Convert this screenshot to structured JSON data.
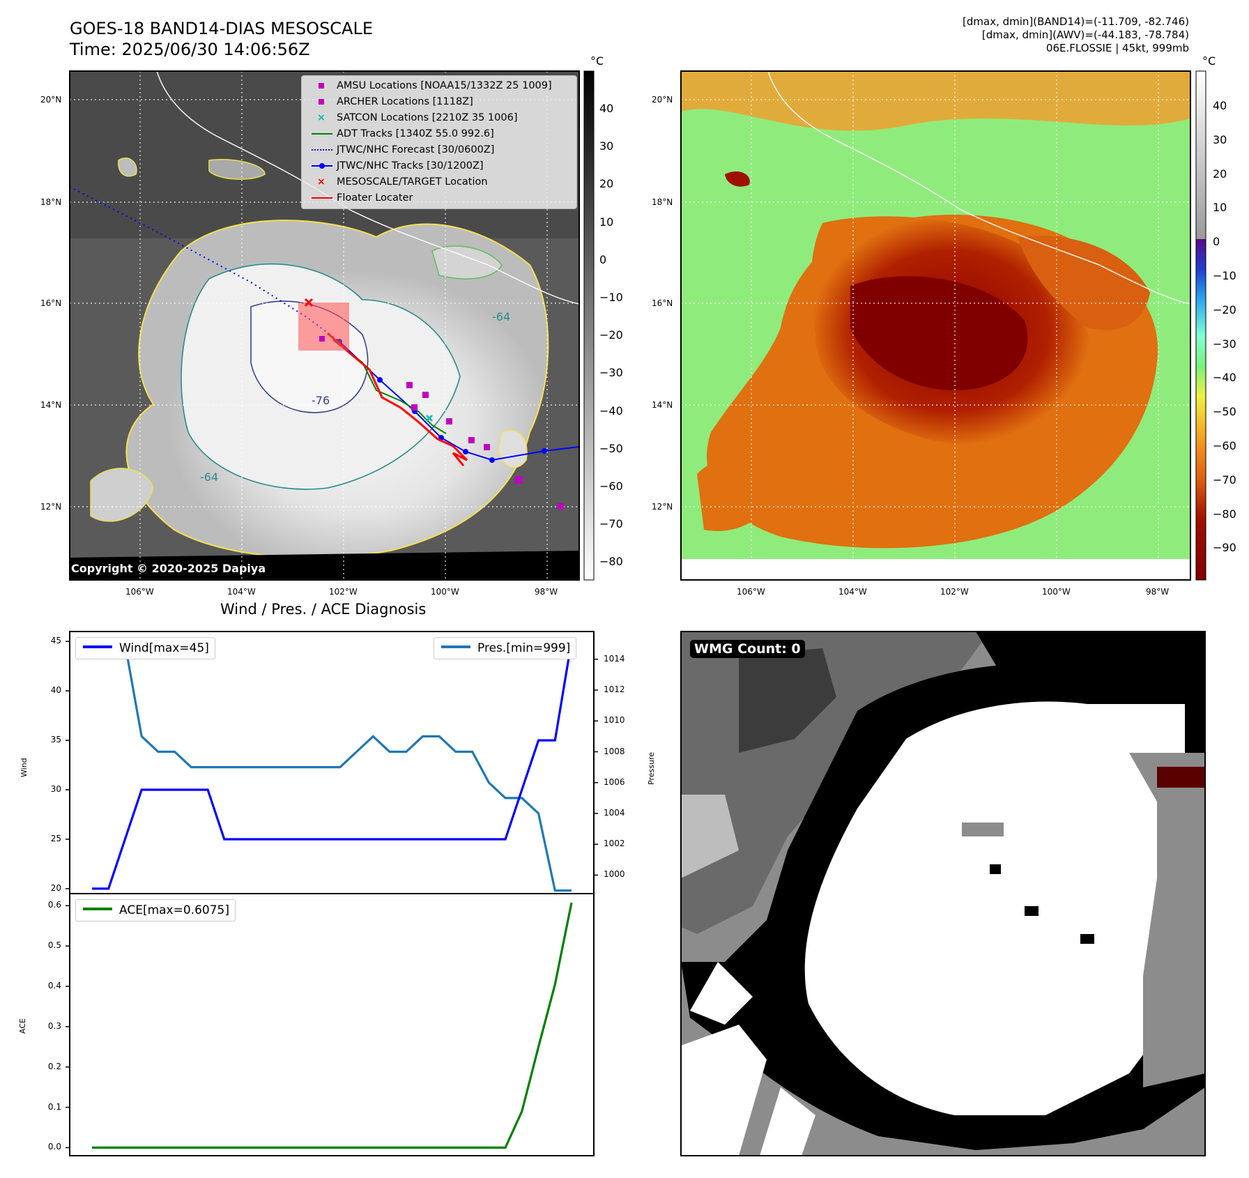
{
  "header": {
    "title_line1": "GOES-18 BAND14-DIAS MESOSCALE",
    "title_line2": "Time: 2025/06/30 14:06:56Z",
    "right_line1": "[dmax, dmin](BAND14)=(-11.709, -82.746)",
    "right_line2": "[dmax, dmin](AWV)=(-44.183, -78.784)",
    "right_line3": "06E.FLOSSIE | 45kt, 999mb"
  },
  "map": {
    "lat_labels": [
      "20°N",
      "18°N",
      "16°N",
      "14°N",
      "12°N"
    ],
    "lon_labels": [
      "106°W",
      "104°W",
      "102°W",
      "100°W",
      "98°W"
    ],
    "copyright": "Copyright © 2020-2025 Dapiya",
    "contour_labels": [
      "-76",
      "-64",
      "-64"
    ],
    "legend": [
      {
        "label": "AMSU Locations [NOAA15/1332Z 25 1009]",
        "icon": "square-marker",
        "color": "#c000c0"
      },
      {
        "label": "ARCHER Locations [1118Z]",
        "icon": "square-marker",
        "color": "#c000c0"
      },
      {
        "label": "SATCON Locations [2210Z 35 1006]",
        "icon": "x-marker",
        "color": "#00b8b8"
      },
      {
        "label": "ADT Tracks [1340Z 55.0 992.6]",
        "icon": "line",
        "color": "#008000"
      },
      {
        "label": "JTWC/NHC Forecast [30/0600Z]",
        "icon": "dotted-line",
        "color": "#0000ff"
      },
      {
        "label": "JTWC/NHC Tracks [30/1200Z]",
        "icon": "line-dot",
        "color": "#0000ff"
      },
      {
        "label": "MESOSCALE/TARGET Location",
        "icon": "x-marker",
        "color": "#ff0000"
      },
      {
        "label": "Floater Locater",
        "icon": "line",
        "color": "#ff0000"
      }
    ],
    "colorbar_unit": "°C",
    "colorbar_ticks": [
      "40",
      "30",
      "20",
      "10",
      "0",
      "−10",
      "−20",
      "−30",
      "−40",
      "−50",
      "−60",
      "−70",
      "−80"
    ]
  },
  "awv_map": {
    "colorbar_unit": "°C",
    "colorbar_ticks": [
      "40",
      "30",
      "20",
      "10",
      "0",
      "−10",
      "−20",
      "−30",
      "−40",
      "−50",
      "−60",
      "−70",
      "−80",
      "−90"
    ]
  },
  "wmg": {
    "label": "WMG Count: 0"
  },
  "chart_data": [
    {
      "type": "line",
      "title": "Wind / Pres. / ACE Diagnosis",
      "ylabel": "Wind",
      "ylabel_right": "Pressure",
      "ylim": [
        19.5,
        46
      ],
      "ylim_right": [
        998.8,
        1015.8
      ],
      "yticks": [
        "45",
        "40",
        "35",
        "30",
        "25",
        "20"
      ],
      "yticks_right": [
        "1014",
        "1012",
        "1010",
        "1008",
        "1006",
        "1004",
        "1002",
        "1000"
      ],
      "series": [
        {
          "name": "Wind[max=45]",
          "color": "#0000ff",
          "axis": "left",
          "x": [
            0,
            1,
            2,
            3,
            4,
            5,
            6,
            7,
            8,
            9,
            10,
            11,
            12,
            13,
            14,
            15,
            16,
            17,
            18,
            19,
            20,
            21,
            22,
            23,
            24,
            25,
            26,
            27,
            28,
            29
          ],
          "values": [
            20,
            20,
            25,
            30,
            30,
            30,
            30,
            30,
            25,
            25,
            25,
            25,
            25,
            25,
            25,
            25,
            25,
            25,
            25,
            25,
            25,
            25,
            25,
            25,
            25,
            25,
            30,
            35,
            35,
            45
          ]
        },
        {
          "name": "Pres.[min=999]",
          "color": "#1f77b4",
          "axis": "right",
          "x": [
            0,
            1,
            2,
            3,
            4,
            5,
            6,
            7,
            8,
            9,
            10,
            11,
            12,
            13,
            14,
            15,
            16,
            17,
            18,
            19,
            20,
            21,
            22,
            23,
            24,
            25,
            26,
            27,
            28,
            29
          ],
          "values": [
            1015,
            1015,
            1015,
            1009,
            1008,
            1008,
            1007,
            1007,
            1007,
            1007,
            1007,
            1007,
            1007,
            1007,
            1007,
            1007,
            1008,
            1009,
            1008,
            1008,
            1009,
            1009,
            1008,
            1008,
            1006,
            1005,
            1005,
            1004,
            999,
            999
          ]
        }
      ]
    },
    {
      "type": "line",
      "ylabel": "ACE",
      "ylim": [
        -0.02,
        0.63
      ],
      "yticks": [
        "0.6",
        "0.5",
        "0.4",
        "0.3",
        "0.2",
        "0.1",
        "0.0"
      ],
      "series": [
        {
          "name": "ACE[max=0.6075]",
          "color": "#008000",
          "x": [
            0,
            1,
            2,
            3,
            4,
            5,
            6,
            7,
            8,
            9,
            10,
            11,
            12,
            13,
            14,
            15,
            16,
            17,
            18,
            19,
            20,
            21,
            22,
            23,
            24,
            25,
            26,
            27,
            28,
            29
          ],
          "values": [
            0,
            0,
            0,
            0,
            0,
            0,
            0,
            0,
            0,
            0,
            0,
            0,
            0,
            0,
            0,
            0,
            0,
            0,
            0,
            0,
            0,
            0,
            0,
            0,
            0,
            0,
            0.09,
            0.25,
            0.405,
            0.6075
          ]
        }
      ]
    }
  ]
}
